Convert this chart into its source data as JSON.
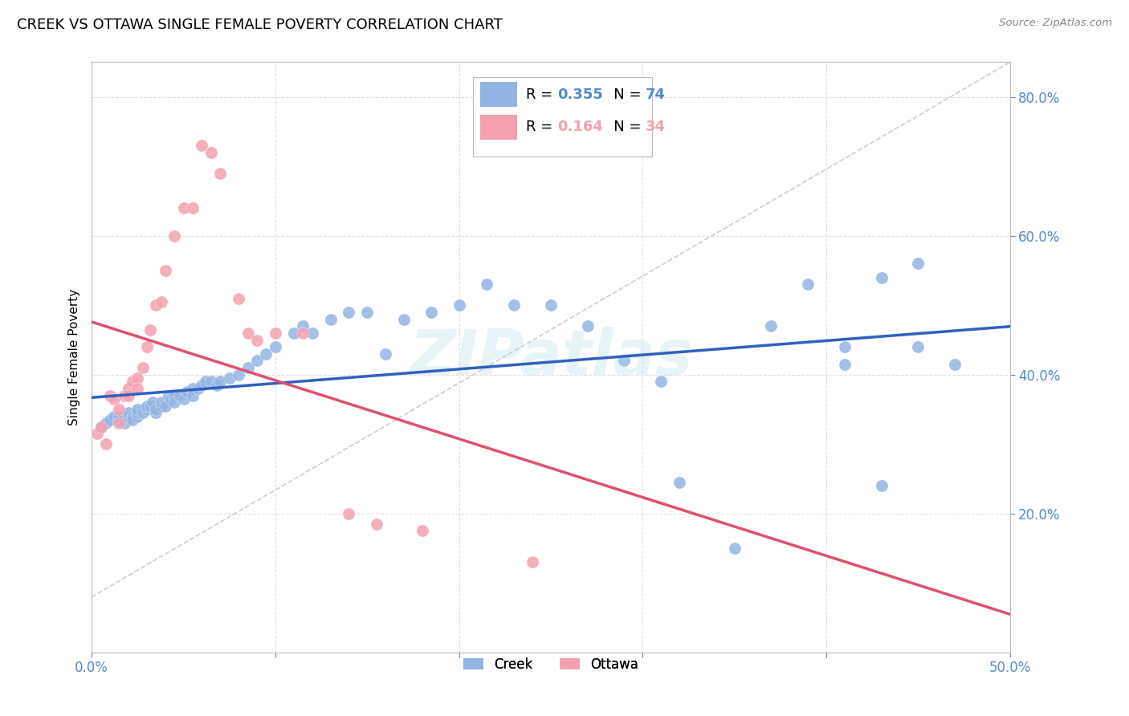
{
  "title": "CREEK VS OTTAWA SINGLE FEMALE POVERTY CORRELATION CHART",
  "source": "Source: ZipAtlas.com",
  "ylabel": "Single Female Poverty",
  "watermark": "ZIPatlas",
  "xlim": [
    0.0,
    0.5
  ],
  "ylim": [
    0.0,
    0.85
  ],
  "ytick_vals": [
    0.2,
    0.4,
    0.6,
    0.8
  ],
  "ytick_labels": [
    "20.0%",
    "40.0%",
    "60.0%",
    "80.0%"
  ],
  "xtick_vals": [
    0.0,
    0.1,
    0.2,
    0.3,
    0.4,
    0.5
  ],
  "xtick_labels": [
    "0.0%",
    "",
    "",
    "",
    "",
    "50.0%"
  ],
  "creek_R": 0.355,
  "creek_N": 74,
  "ottawa_R": 0.164,
  "ottawa_N": 34,
  "creek_color": "#92b4e3",
  "ottawa_color": "#f4a0b0",
  "creek_line_color": "#3060c0",
  "ottawa_line_color": "#e05070",
  "diagonal_color": "#c8c8c8",
  "axis_color": "#5588cc",
  "grid_color": "#e0e0e0",
  "title_fontsize": 13,
  "label_fontsize": 11,
  "tick_fontsize": 12,
  "creek_x": [
    0.005,
    0.008,
    0.01,
    0.012,
    0.015,
    0.015,
    0.018,
    0.02,
    0.02,
    0.022,
    0.022,
    0.025,
    0.025,
    0.025,
    0.028,
    0.028,
    0.03,
    0.03,
    0.032,
    0.033,
    0.035,
    0.035,
    0.038,
    0.038,
    0.04,
    0.04,
    0.042,
    0.043,
    0.045,
    0.045,
    0.048,
    0.05,
    0.052,
    0.055,
    0.055,
    0.058,
    0.06,
    0.062,
    0.065,
    0.068,
    0.07,
    0.075,
    0.08,
    0.085,
    0.09,
    0.095,
    0.1,
    0.11,
    0.115,
    0.12,
    0.13,
    0.14,
    0.15,
    0.16,
    0.17,
    0.185,
    0.2,
    0.215,
    0.23,
    0.25,
    0.27,
    0.29,
    0.31,
    0.32,
    0.35,
    0.37,
    0.39,
    0.41,
    0.43,
    0.45,
    0.41,
    0.43,
    0.45,
    0.47
  ],
  "creek_y": [
    0.325,
    0.33,
    0.335,
    0.34,
    0.335,
    0.34,
    0.33,
    0.34,
    0.345,
    0.34,
    0.335,
    0.34,
    0.345,
    0.35,
    0.35,
    0.345,
    0.35,
    0.355,
    0.355,
    0.36,
    0.345,
    0.35,
    0.355,
    0.36,
    0.36,
    0.355,
    0.37,
    0.365,
    0.37,
    0.36,
    0.37,
    0.365,
    0.375,
    0.38,
    0.37,
    0.38,
    0.385,
    0.39,
    0.39,
    0.385,
    0.39,
    0.395,
    0.4,
    0.41,
    0.42,
    0.43,
    0.44,
    0.46,
    0.47,
    0.46,
    0.48,
    0.49,
    0.49,
    0.43,
    0.48,
    0.49,
    0.5,
    0.53,
    0.5,
    0.5,
    0.47,
    0.42,
    0.39,
    0.245,
    0.15,
    0.47,
    0.53,
    0.44,
    0.54,
    0.56,
    0.415,
    0.24,
    0.44,
    0.415
  ],
  "ottawa_x": [
    0.003,
    0.005,
    0.008,
    0.01,
    0.012,
    0.015,
    0.015,
    0.018,
    0.02,
    0.02,
    0.022,
    0.025,
    0.025,
    0.028,
    0.03,
    0.032,
    0.035,
    0.038,
    0.04,
    0.045,
    0.05,
    0.055,
    0.06,
    0.065,
    0.07,
    0.08,
    0.085,
    0.09,
    0.1,
    0.115,
    0.14,
    0.155,
    0.18,
    0.24
  ],
  "ottawa_y": [
    0.315,
    0.325,
    0.3,
    0.37,
    0.365,
    0.35,
    0.33,
    0.37,
    0.38,
    0.37,
    0.39,
    0.395,
    0.38,
    0.41,
    0.44,
    0.465,
    0.5,
    0.505,
    0.55,
    0.6,
    0.64,
    0.64,
    0.73,
    0.72,
    0.69,
    0.51,
    0.46,
    0.45,
    0.46,
    0.46,
    0.2,
    0.185,
    0.175,
    0.13
  ]
}
